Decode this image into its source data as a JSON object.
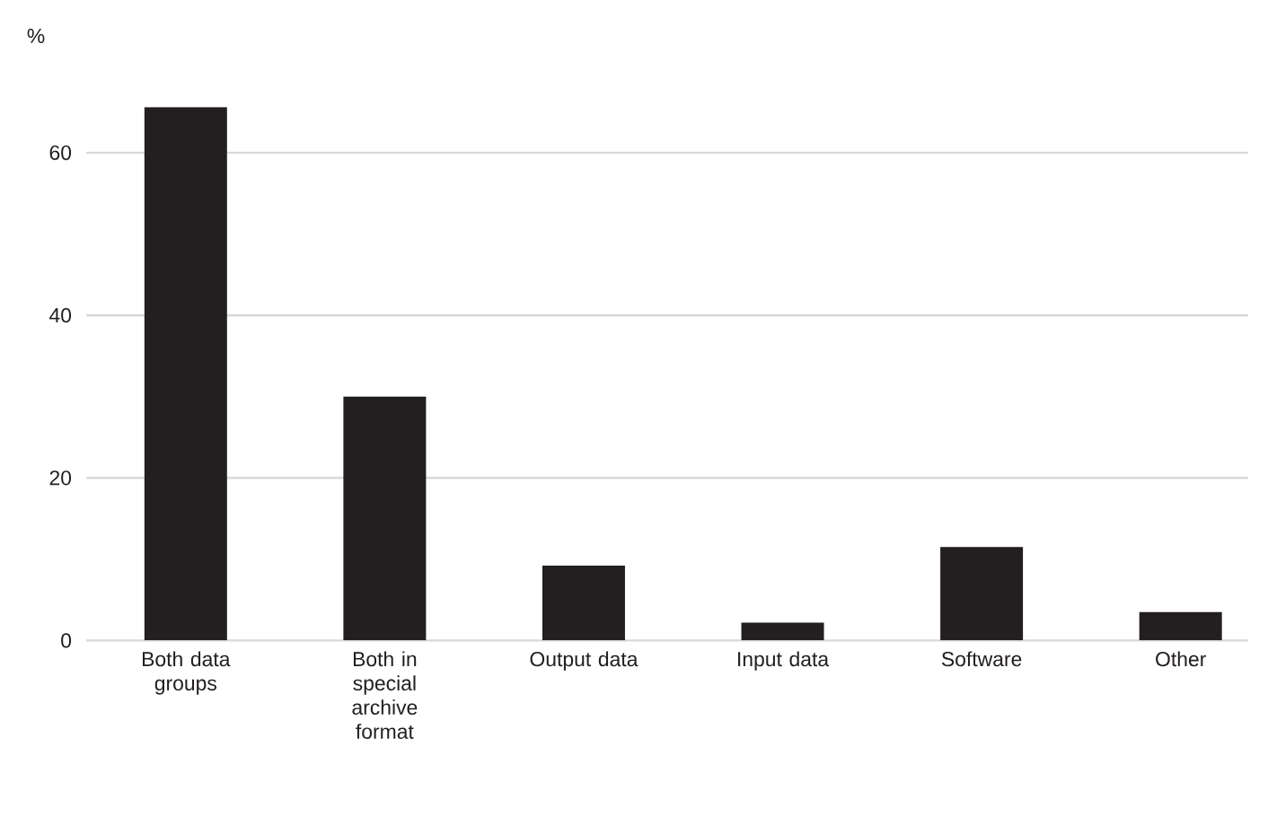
{
  "chart_data": {
    "type": "bar",
    "ylabel": "%",
    "categories": [
      "Both data groups",
      "Both in special archive format",
      "Output data",
      "Input data",
      "Software",
      "Other"
    ],
    "values": [
      65.6,
      30.0,
      9.2,
      2.2,
      11.5,
      3.5
    ],
    "color": "#231f20",
    "ylim": [
      0,
      65.6
    ],
    "yticks": [
      0,
      20,
      40,
      60
    ],
    "grid": "y"
  }
}
